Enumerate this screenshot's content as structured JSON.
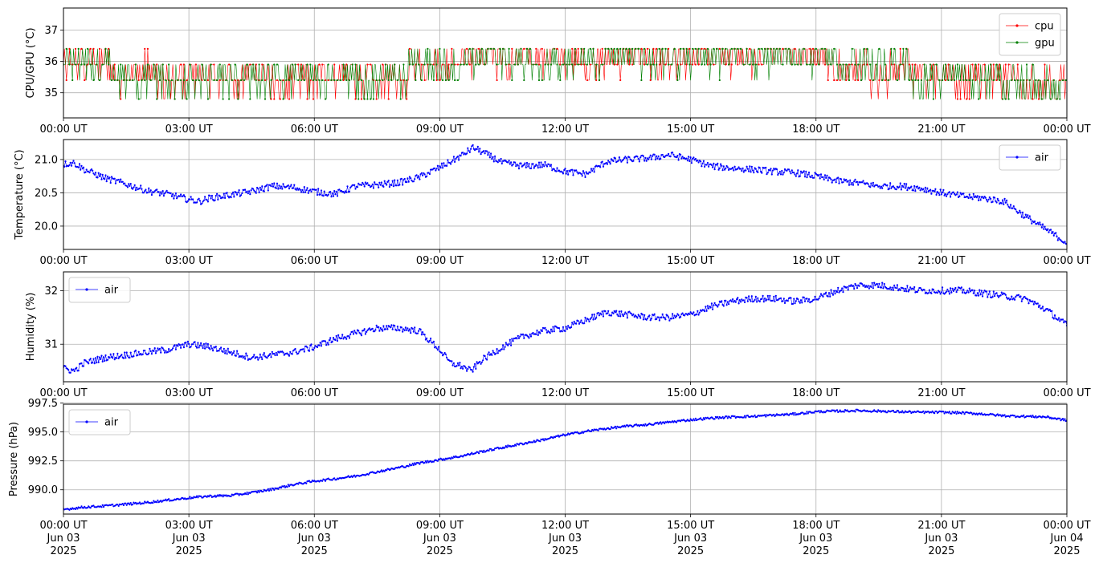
{
  "chart_data": [
    {
      "type": "line",
      "ylabel": "CPU/GPU (°C)",
      "ylim": [
        34.2,
        37.7
      ],
      "yticks": [
        35,
        36,
        37
      ],
      "ytick_labels": [
        "35",
        "36",
        "37"
      ],
      "xlim_hours": [
        0,
        24
      ],
      "xticks_hours": [
        0,
        3,
        6,
        9,
        12,
        15,
        18,
        21,
        24
      ],
      "xtick_labels": [
        "00:00 UT",
        "03:00 UT",
        "06:00 UT",
        "09:00 UT",
        "12:00 UT",
        "15:00 UT",
        "18:00 UT",
        "21:00 UT",
        "00:00 UT"
      ],
      "grid": true,
      "legend_position": "upper right",
      "series": [
        {
          "name": "cpu",
          "color": "#ff0000",
          "x": [
            0,
            0.5,
            1,
            1.5,
            2,
            2.5,
            3,
            3.5,
            4,
            4.5,
            5,
            5.5,
            6,
            6.5,
            7,
            7.5,
            8,
            8.5,
            9,
            9.5,
            10,
            10.5,
            11,
            11.5,
            12,
            12.5,
            13,
            13.5,
            14,
            14.5,
            15,
            15.5,
            16,
            16.5,
            17,
            17.5,
            18,
            18.5,
            19,
            19.5,
            20,
            20.5,
            21,
            21.5,
            22,
            22.5,
            23,
            23.5,
            24
          ],
          "values": [
            36.2,
            35.8,
            35.9,
            35.6,
            35.9,
            35.1,
            35.6,
            35.6,
            35.6,
            35.5,
            35.6,
            35.6,
            35.5,
            35.6,
            35.7,
            35.6,
            35.7,
            35.8,
            35.9,
            36.0,
            36.1,
            36.0,
            36.0,
            36.1,
            36.0,
            35.9,
            36.0,
            36.1,
            36.1,
            36.1,
            36.1,
            36.0,
            36.1,
            36.1,
            36.1,
            36.2,
            36.1,
            35.9,
            35.8,
            35.7,
            35.8,
            35.7,
            35.6,
            35.7,
            35.6,
            35.4,
            35.3,
            35.2,
            35.1
          ]
        },
        {
          "name": "gpu",
          "color": "#008000",
          "x": [
            0,
            0.5,
            1,
            1.5,
            2,
            2.5,
            3,
            3.5,
            4,
            4.5,
            5,
            5.5,
            6,
            6.5,
            7,
            7.5,
            8,
            8.5,
            9,
            9.5,
            10,
            10.5,
            11,
            11.5,
            12,
            12.5,
            13,
            13.5,
            14,
            14.5,
            15,
            15.5,
            16,
            16.5,
            17,
            17.5,
            18,
            18.5,
            19,
            19.5,
            20,
            20.5,
            21,
            21.5,
            22,
            22.5,
            23,
            23.5,
            24
          ],
          "values": [
            36.1,
            35.8,
            35.8,
            35.6,
            35.7,
            35.3,
            35.5,
            35.5,
            35.6,
            35.5,
            35.6,
            35.6,
            35.6,
            35.6,
            35.7,
            35.6,
            35.7,
            35.8,
            35.9,
            36.0,
            36.1,
            36.1,
            36.0,
            36.0,
            36.0,
            36.0,
            36.0,
            36.1,
            36.1,
            36.2,
            36.1,
            36.1,
            36.1,
            36.1,
            36.1,
            36.1,
            36.1,
            36.0,
            35.9,
            35.8,
            35.8,
            35.7,
            35.7,
            35.7,
            35.6,
            35.4,
            35.3,
            35.1,
            35.0
          ]
        }
      ]
    },
    {
      "type": "line",
      "ylabel": "Temperature (°C)",
      "ylim": [
        19.65,
        21.3
      ],
      "yticks": [
        20.0,
        20.5,
        21.0
      ],
      "ytick_labels": [
        "20.0",
        "20.5",
        "21.0"
      ],
      "xlim_hours": [
        0,
        24
      ],
      "xticks_hours": [
        0,
        3,
        6,
        9,
        12,
        15,
        18,
        21,
        24
      ],
      "xtick_labels": [
        "00:00 UT",
        "03:00 UT",
        "06:00 UT",
        "09:00 UT",
        "12:00 UT",
        "15:00 UT",
        "18:00 UT",
        "21:00 UT",
        "00:00 UT"
      ],
      "grid": true,
      "legend_position": "upper right",
      "series": [
        {
          "name": "air",
          "color": "#0000ff",
          "x": [
            0,
            0.25,
            0.5,
            1,
            1.5,
            2,
            2.5,
            3,
            3.25,
            3.5,
            4,
            4.5,
            5,
            5.5,
            6,
            6.5,
            7,
            7.5,
            8,
            8.5,
            9,
            9.5,
            9.8,
            10,
            10.5,
            11,
            11.5,
            12,
            12.5,
            13,
            13.5,
            14,
            14.5,
            15,
            15.5,
            16,
            16.5,
            17,
            17.5,
            18,
            18.5,
            19,
            19.5,
            20,
            20.5,
            21,
            21.5,
            22,
            22.5,
            23,
            23.5,
            24
          ],
          "values": [
            20.93,
            20.95,
            20.85,
            20.72,
            20.63,
            20.53,
            20.48,
            20.4,
            20.37,
            20.42,
            20.47,
            20.52,
            20.6,
            20.58,
            20.52,
            20.48,
            20.6,
            20.62,
            20.65,
            20.73,
            20.88,
            21.05,
            21.18,
            21.12,
            20.95,
            20.9,
            20.92,
            20.82,
            20.78,
            20.97,
            21.0,
            21.02,
            21.07,
            21.0,
            20.9,
            20.87,
            20.85,
            20.82,
            20.8,
            20.75,
            20.68,
            20.65,
            20.6,
            20.6,
            20.57,
            20.5,
            20.45,
            20.42,
            20.37,
            20.15,
            19.95,
            19.75
          ]
        }
      ]
    },
    {
      "type": "line",
      "ylabel": "Humidity (%)",
      "ylim": [
        30.3,
        32.35
      ],
      "yticks": [
        31,
        32
      ],
      "ytick_labels": [
        "31",
        "32"
      ],
      "xlim_hours": [
        0,
        24
      ],
      "xticks_hours": [
        0,
        3,
        6,
        9,
        12,
        15,
        18,
        21,
        24
      ],
      "xtick_labels": [
        "00:00 UT",
        "03:00 UT",
        "06:00 UT",
        "09:00 UT",
        "12:00 UT",
        "15:00 UT",
        "18:00 UT",
        "21:00 UT",
        "00:00 UT"
      ],
      "grid": true,
      "legend_position": "upper left",
      "series": [
        {
          "name": "air",
          "color": "#0000ff",
          "x": [
            0,
            0.25,
            0.5,
            1,
            1.5,
            2,
            2.5,
            3,
            3.5,
            4,
            4.5,
            5,
            5.5,
            6,
            6.5,
            7,
            7.5,
            8,
            8.5,
            9,
            9.25,
            9.5,
            9.75,
            10,
            10.5,
            11,
            11.5,
            12,
            12.5,
            13,
            13.5,
            14,
            14.5,
            15,
            15.5,
            16,
            16.5,
            17,
            17.5,
            18,
            18.5,
            19,
            19.5,
            20,
            20.5,
            21,
            21.5,
            22,
            22.5,
            23,
            23.5,
            24
          ],
          "values": [
            30.55,
            30.5,
            30.65,
            30.75,
            30.8,
            30.85,
            30.9,
            31.0,
            30.95,
            30.85,
            30.75,
            30.8,
            30.85,
            30.95,
            31.1,
            31.2,
            31.3,
            31.3,
            31.25,
            30.9,
            30.65,
            30.6,
            30.5,
            30.7,
            30.95,
            31.15,
            31.25,
            31.3,
            31.45,
            31.6,
            31.55,
            31.5,
            31.5,
            31.55,
            31.7,
            31.8,
            31.85,
            31.85,
            31.8,
            31.85,
            32.0,
            32.1,
            32.1,
            32.05,
            32.0,
            32.0,
            32.0,
            31.95,
            31.9,
            31.85,
            31.65,
            31.35
          ]
        }
      ]
    },
    {
      "type": "line",
      "ylabel": "Pressure (hPa)",
      "ylim": [
        987.9,
        997.4
      ],
      "yticks": [
        990.0,
        992.5,
        995.0,
        997.5
      ],
      "ytick_labels": [
        "990.0",
        "992.5",
        "995.0",
        "997.5"
      ],
      "xlim_hours": [
        0,
        24
      ],
      "xticks_hours": [
        0,
        3,
        6,
        9,
        12,
        15,
        18,
        21,
        24
      ],
      "xtick_labels": [
        "00:00 UT\nJun 03\n2025",
        "03:00 UT\nJun 03\n2025",
        "06:00 UT\nJun 03\n2025",
        "09:00 UT\nJun 03\n2025",
        "12:00 UT\nJun 03\n2025",
        "15:00 UT\nJun 03\n2025",
        "18:00 UT\nJun 03\n2025",
        "21:00 UT\nJun 03\n2025",
        "00:00 UT\nJun 04\n2025"
      ],
      "grid": true,
      "legend_position": "upper left",
      "series": [
        {
          "name": "air",
          "color": "#0000ff",
          "x": [
            0,
            0.5,
            1,
            1.5,
            2,
            2.5,
            3,
            3.5,
            4,
            4.5,
            5,
            5.5,
            6,
            6.5,
            7,
            7.5,
            8,
            8.5,
            9,
            9.5,
            10,
            10.5,
            11,
            11.5,
            12,
            12.5,
            13,
            13.5,
            14,
            14.5,
            15,
            15.5,
            16,
            16.5,
            17,
            17.5,
            18,
            18.5,
            19,
            19.5,
            20,
            20.5,
            21,
            21.5,
            22,
            22.5,
            23,
            23.5,
            24
          ],
          "values": [
            988.3,
            988.5,
            988.6,
            988.75,
            988.9,
            989.1,
            989.3,
            989.45,
            989.5,
            989.75,
            990.05,
            990.45,
            990.75,
            990.95,
            991.2,
            991.55,
            991.9,
            992.3,
            992.6,
            992.9,
            993.3,
            993.65,
            994.0,
            994.35,
            994.75,
            995.05,
            995.3,
            995.5,
            995.65,
            995.85,
            996.05,
            996.2,
            996.3,
            996.35,
            996.45,
            996.55,
            996.75,
            996.8,
            996.85,
            996.8,
            996.75,
            996.7,
            996.7,
            996.65,
            996.55,
            996.4,
            996.35,
            996.3,
            996.0
          ]
        }
      ]
    }
  ]
}
